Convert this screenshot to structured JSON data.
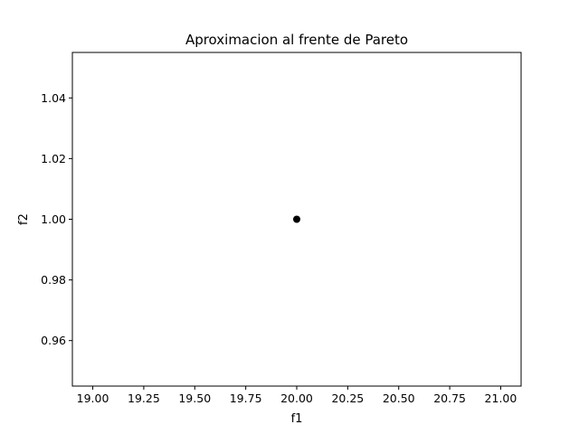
{
  "chart_data": {
    "type": "scatter",
    "title": "Aproximacion al frente de Pareto",
    "xlabel": "f1",
    "ylabel": "f2",
    "xlim": [
      18.9,
      21.1
    ],
    "ylim": [
      0.945,
      1.055
    ],
    "xticks": [
      "19.00",
      "19.25",
      "19.50",
      "19.75",
      "20.00",
      "20.25",
      "20.50",
      "20.75",
      "21.00"
    ],
    "yticks": [
      "0.96",
      "0.98",
      "1.00",
      "1.02",
      "1.04"
    ],
    "grid": false,
    "series": [
      {
        "x": [
          20.0
        ],
        "y": [
          1.0
        ],
        "color": "#000000"
      }
    ]
  }
}
